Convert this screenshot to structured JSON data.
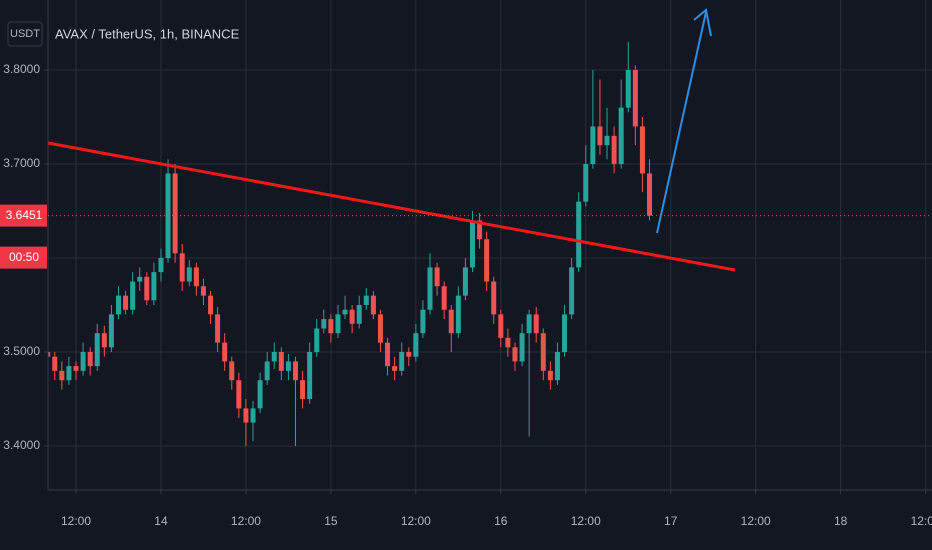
{
  "chart_data": {
    "type": "candlestick",
    "title": "AVAX / TetherUS, 1h, BINANCE",
    "currency_button": "USDT",
    "countdown": "00:50",
    "last_price": 3.6451,
    "up_color": "#26a69a",
    "down_color": "#ef5350",
    "grid": true,
    "xlim": [
      -3.955,
      120.9
    ],
    "ylim": [
      3.3532,
      3.8745
    ],
    "xticks": [
      {
        "value": 0,
        "label": "12:00"
      },
      {
        "value": 12,
        "label": "14"
      },
      {
        "value": 24,
        "label": "12:00"
      },
      {
        "value": 36,
        "label": "15"
      },
      {
        "value": 48,
        "label": "12:00"
      },
      {
        "value": 60,
        "label": "16"
      },
      {
        "value": 72,
        "label": "12:00"
      },
      {
        "value": 84,
        "label": "17"
      },
      {
        "value": 96,
        "label": "12:00"
      },
      {
        "value": 108,
        "label": "18"
      },
      {
        "value": 120,
        "label": "12:00"
      }
    ],
    "yticks": [
      {
        "value": 3.4,
        "label": "3.4000"
      },
      {
        "value": 3.5,
        "label": "3.5000"
      },
      {
        "value": 3.6,
        "label": "3.6000"
      },
      {
        "value": 3.7,
        "label": "3.7000"
      },
      {
        "value": 3.8,
        "label": "3.8000"
      }
    ],
    "x": [
      -4,
      -3,
      -2,
      -1,
      0,
      1,
      2,
      3,
      4,
      5,
      6,
      7,
      8,
      9,
      10,
      11,
      12,
      13,
      14,
      15,
      16,
      17,
      18,
      19,
      20,
      21,
      22,
      23,
      24,
      25,
      26,
      27,
      28,
      29,
      30,
      31,
      32,
      33,
      34,
      35,
      36,
      37,
      38,
      39,
      40,
      41,
      42,
      43,
      44,
      45,
      46,
      47,
      48,
      49,
      50,
      51,
      52,
      53,
      54,
      55,
      56,
      57,
      58,
      59,
      60,
      61,
      62,
      63,
      64,
      65,
      66,
      67,
      68,
      69,
      70,
      71,
      72,
      73,
      74,
      75,
      76,
      77,
      78,
      79,
      80,
      81
    ],
    "ohlc": [
      [
        3.5,
        3.51,
        3.485,
        3.495
      ],
      [
        3.495,
        3.5,
        3.47,
        3.48
      ],
      [
        3.48,
        3.49,
        3.46,
        3.47
      ],
      [
        3.47,
        3.495,
        3.465,
        3.485
      ],
      [
        3.485,
        3.49,
        3.47,
        3.48
      ],
      [
        3.48,
        3.51,
        3.475,
        3.5
      ],
      [
        3.5,
        3.505,
        3.475,
        3.485
      ],
      [
        3.485,
        3.53,
        3.48,
        3.52
      ],
      [
        3.52,
        3.528,
        3.495,
        3.505
      ],
      [
        3.505,
        3.55,
        3.5,
        3.54
      ],
      [
        3.54,
        3.57,
        3.535,
        3.56
      ],
      [
        3.56,
        3.565,
        3.54,
        3.545
      ],
      [
        3.545,
        3.585,
        3.54,
        3.575
      ],
      [
        3.575,
        3.59,
        3.565,
        3.58
      ],
      [
        3.58,
        3.585,
        3.55,
        3.555
      ],
      [
        3.555,
        3.595,
        3.55,
        3.585
      ],
      [
        3.585,
        3.61,
        3.575,
        3.6
      ],
      [
        3.6,
        3.705,
        3.595,
        3.69
      ],
      [
        3.69,
        3.7,
        3.595,
        3.605
      ],
      [
        3.605,
        3.615,
        3.565,
        3.575
      ],
      [
        3.575,
        3.598,
        3.57,
        3.59
      ],
      [
        3.59,
        3.595,
        3.56,
        3.57
      ],
      [
        3.57,
        3.578,
        3.55,
        3.56
      ],
      [
        3.56,
        3.565,
        3.53,
        3.54
      ],
      [
        3.54,
        3.548,
        3.5,
        3.51
      ],
      [
        3.51,
        3.52,
        3.48,
        3.49
      ],
      [
        3.49,
        3.495,
        3.46,
        3.47
      ],
      [
        3.47,
        3.478,
        3.43,
        3.44
      ],
      [
        3.44,
        3.45,
        3.4,
        3.425
      ],
      [
        3.425,
        3.448,
        3.405,
        3.44
      ],
      [
        3.44,
        3.478,
        3.435,
        3.47
      ],
      [
        3.47,
        3.5,
        3.465,
        3.49
      ],
      [
        3.49,
        3.51,
        3.482,
        3.5
      ],
      [
        3.5,
        3.505,
        3.47,
        3.48
      ],
      [
        3.48,
        3.498,
        3.47,
        3.49
      ],
      [
        3.49,
        3.495,
        3.4,
        3.47
      ],
      [
        3.47,
        3.48,
        3.44,
        3.45
      ],
      [
        3.45,
        3.51,
        3.445,
        3.5
      ],
      [
        3.5,
        3.535,
        3.495,
        3.525
      ],
      [
        3.525,
        3.545,
        3.52,
        3.535
      ],
      [
        3.535,
        3.54,
        3.51,
        3.52
      ],
      [
        3.52,
        3.55,
        3.515,
        3.54
      ],
      [
        3.54,
        3.56,
        3.535,
        3.545
      ],
      [
        3.545,
        3.55,
        3.52,
        3.53
      ],
      [
        3.53,
        3.56,
        3.525,
        3.55
      ],
      [
        3.55,
        3.568,
        3.545,
        3.56
      ],
      [
        3.56,
        3.565,
        3.535,
        3.54
      ],
      [
        3.54,
        3.545,
        3.5,
        3.51
      ],
      [
        3.51,
        3.515,
        3.475,
        3.485
      ],
      [
        3.485,
        3.495,
        3.47,
        3.48
      ],
      [
        3.48,
        3.51,
        3.475,
        3.5
      ],
      [
        3.5,
        3.505,
        3.485,
        3.495
      ],
      [
        3.495,
        3.53,
        3.49,
        3.52
      ],
      [
        3.52,
        3.555,
        3.515,
        3.545
      ],
      [
        3.545,
        3.605,
        3.54,
        3.59
      ],
      [
        3.59,
        3.595,
        3.56,
        3.57
      ],
      [
        3.57,
        3.575,
        3.535,
        3.545
      ],
      [
        3.545,
        3.55,
        3.5,
        3.52
      ],
      [
        3.52,
        3.57,
        3.515,
        3.56
      ],
      [
        3.56,
        3.6,
        3.555,
        3.59
      ],
      [
        3.59,
        3.65,
        3.585,
        3.64
      ],
      [
        3.64,
        3.648,
        3.61,
        3.62
      ],
      [
        3.62,
        3.628,
        3.565,
        3.575
      ],
      [
        3.575,
        3.58,
        3.53,
        3.54
      ],
      [
        3.54,
        3.545,
        3.505,
        3.515
      ],
      [
        3.515,
        3.525,
        3.495,
        3.505
      ],
      [
        3.505,
        3.51,
        3.48,
        3.49
      ],
      [
        3.49,
        3.53,
        3.485,
        3.52
      ],
      [
        3.52,
        3.545,
        3.41,
        3.54
      ],
      [
        3.54,
        3.548,
        3.51,
        3.52
      ],
      [
        3.52,
        3.525,
        3.47,
        3.48
      ],
      [
        3.48,
        3.49,
        3.46,
        3.47
      ],
      [
        3.47,
        3.51,
        3.465,
        3.5
      ],
      [
        3.5,
        3.55,
        3.495,
        3.54
      ],
      [
        3.54,
        3.6,
        3.535,
        3.59
      ],
      [
        3.59,
        3.67,
        3.585,
        3.66
      ],
      [
        3.66,
        3.72,
        3.655,
        3.7
      ],
      [
        3.7,
        3.8,
        3.695,
        3.74
      ],
      [
        3.74,
        3.79,
        3.71,
        3.72
      ],
      [
        3.72,
        3.76,
        3.705,
        3.73
      ],
      [
        3.73,
        3.74,
        3.69,
        3.7
      ],
      [
        3.7,
        3.79,
        3.695,
        3.76
      ],
      [
        3.76,
        3.83,
        3.755,
        3.8
      ],
      [
        3.8,
        3.805,
        3.72,
        3.74
      ],
      [
        3.74,
        3.75,
        3.67,
        3.69
      ],
      [
        3.69,
        3.705,
        3.64,
        3.6451
      ]
    ]
  }
}
